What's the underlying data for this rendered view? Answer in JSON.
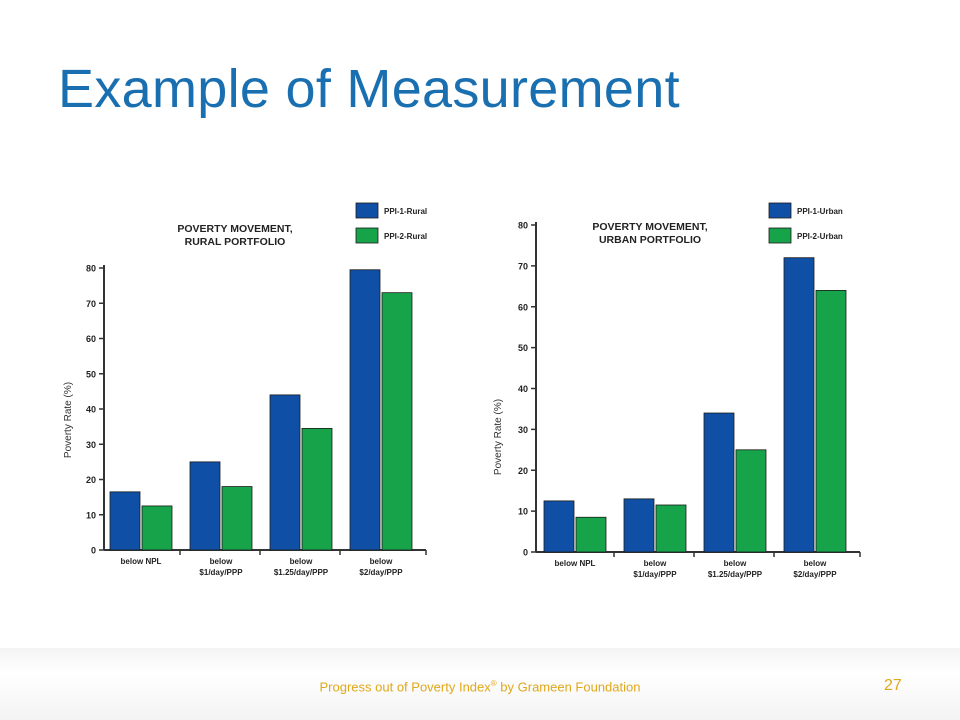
{
  "slide": {
    "title": "Example of Measurement",
    "footer_prefix": "Progress out of Poverty Index",
    "footer_mark": "®",
    "footer_suffix": " by Grameen Foundation",
    "page_number": "27"
  },
  "colors": {
    "series1": "#0f4fa5",
    "series2": "#17a34a",
    "title": "#1a6fb0",
    "footer": "#e0a81a"
  },
  "chart_data": [
    {
      "type": "bar",
      "title": "POVERTY MOVEMENT,",
      "subtitle": "RURAL PORTFOLIO",
      "ylabel": "Poverty Rate (%)",
      "xlabel": "",
      "ylim": [
        0,
        80
      ],
      "yticks": [
        0,
        10,
        20,
        30,
        40,
        50,
        60,
        70,
        80
      ],
      "grid": false,
      "legend": "top-right",
      "categories": [
        [
          "below NPL"
        ],
        [
          "below",
          "$1/day/PPP"
        ],
        [
          "below",
          "$1.25/day/PPP"
        ],
        [
          "below",
          "$2/day/PPP"
        ]
      ],
      "series": [
        {
          "name": "PPI-1-Rural",
          "values": [
            16.5,
            25,
            44,
            79.5
          ]
        },
        {
          "name": "PPI-2-Rural",
          "values": [
            12.5,
            18,
            34.5,
            73
          ]
        }
      ]
    },
    {
      "type": "bar",
      "title": "POVERTY MOVEMENT,",
      "subtitle": "URBAN PORTFOLIO",
      "ylabel": "Poverty Rate (%)",
      "xlabel": "",
      "ylim": [
        0,
        80
      ],
      "yticks": [
        0,
        10,
        20,
        30,
        40,
        50,
        60,
        70,
        80
      ],
      "grid": false,
      "legend": "top-right",
      "categories": [
        [
          "below NPL"
        ],
        [
          "below",
          "$1/day/PPP"
        ],
        [
          "below",
          "$1.25/day/PPP"
        ],
        [
          "below",
          "$2/day/PPP"
        ]
      ],
      "series": [
        {
          "name": "PPI-1-Urban",
          "values": [
            12.5,
            13,
            34,
            72
          ]
        },
        {
          "name": "PPI-2-Urban",
          "values": [
            8.5,
            11.5,
            25,
            64
          ]
        }
      ]
    }
  ]
}
